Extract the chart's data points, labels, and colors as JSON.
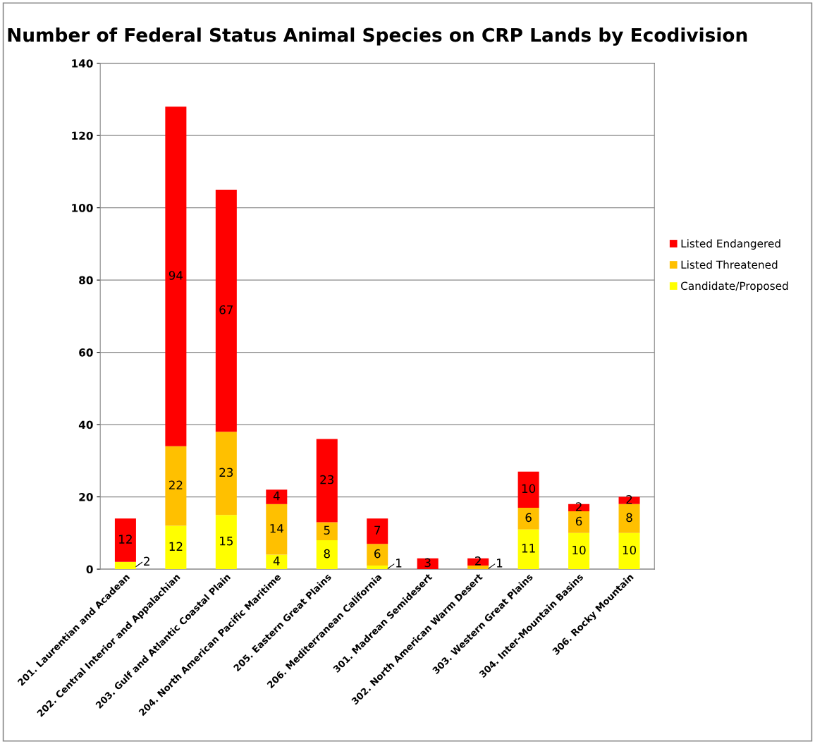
{
  "chart_data": {
    "type": "bar",
    "title": "Number of Federal Status Animal Species on CRP Lands by Ecodivision",
    "categories": [
      "201. Laurentian and Acadean",
      "202. Central Interior and Appalachian",
      "203. Gulf and Atlantic Coastal Plain",
      "204. North American Pacific Maritime",
      "205. Eastern Great Plains",
      "206. Mediterranean California",
      "301. Madrean Semidesert",
      "302. North American Warm Desert",
      "303. Western Great Plains",
      "304. Inter-Mountain Basins",
      "306. Rocky Mountain"
    ],
    "stacked": true,
    "series": [
      {
        "name": "Candidate/Proposed",
        "color": "#ffff00",
        "values": [
          2,
          12,
          15,
          4,
          8,
          1,
          0,
          0,
          11,
          10,
          10
        ],
        "value_labels": [
          "2",
          "12",
          "15",
          "4",
          "8",
          "1",
          null,
          null,
          "11",
          "10",
          "10"
        ]
      },
      {
        "name": "Listed Threatened",
        "color": "#ffc000",
        "values": [
          0,
          22,
          23,
          14,
          5,
          6,
          0,
          1,
          6,
          6,
          8
        ],
        "value_labels": [
          null,
          "22",
          "23",
          "14",
          "5",
          "6",
          null,
          "1",
          "6",
          "6",
          "8"
        ]
      },
      {
        "name": "Listed Endangered",
        "color": "#ff0000",
        "values": [
          12,
          94,
          67,
          4,
          23,
          7,
          3,
          2,
          10,
          2,
          2
        ],
        "value_labels": [
          "12",
          "94",
          "67",
          "4",
          "23",
          "7",
          "3",
          "2",
          "10",
          "2",
          "2"
        ]
      }
    ],
    "ylim": [
      0,
      140
    ],
    "yticks": [
      0,
      20,
      40,
      60,
      80,
      100,
      120,
      140
    ],
    "grid": "y",
    "legend": "right"
  }
}
